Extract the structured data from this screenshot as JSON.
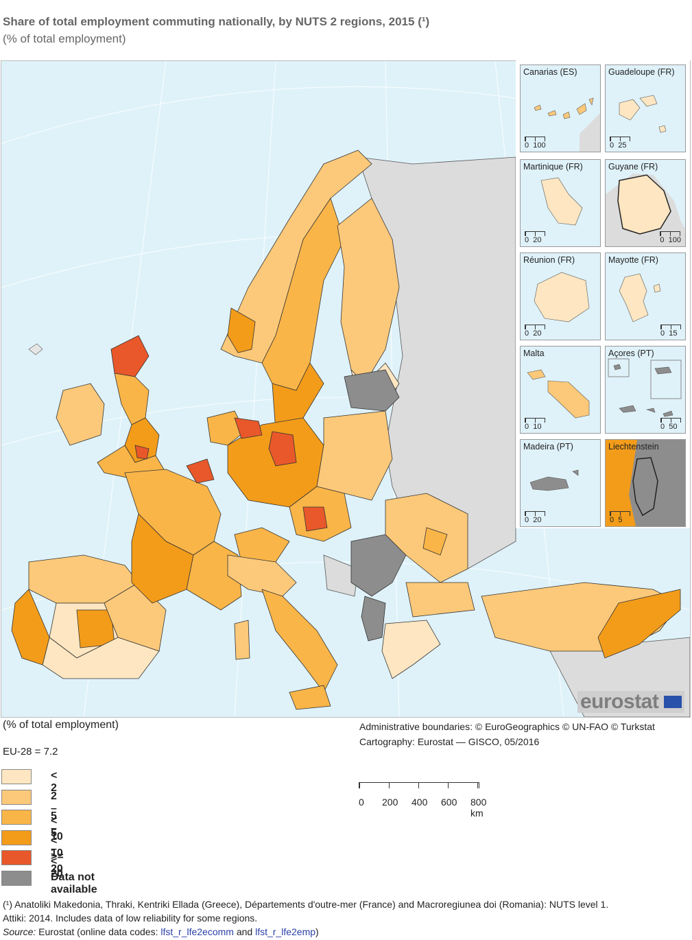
{
  "title": "Share of total employment commuting nationally, by NUTS 2 regions, 2015 (¹)",
  "subtitle": "(% of total employment)",
  "insets": [
    {
      "name": "Canarias (ES)",
      "scale_start": "0",
      "scale_end": "100"
    },
    {
      "name": "Guadeloupe (FR)",
      "scale_start": "0",
      "scale_end": "25"
    },
    {
      "name": "Martinique (FR)",
      "scale_start": "0",
      "scale_end": "20"
    },
    {
      "name": "Guyane (FR)",
      "scale_start": "0",
      "scale_end": "100"
    },
    {
      "name": "Réunion (FR)",
      "scale_start": "0",
      "scale_end": "20"
    },
    {
      "name": "Mayotte (FR)",
      "scale_start": "0",
      "scale_end": "15"
    },
    {
      "name": "Malta",
      "scale_start": "0",
      "scale_end": "10"
    },
    {
      "name": "Açores (PT)",
      "scale_start": "0",
      "scale_end": "50"
    },
    {
      "name": "Madeira (PT)",
      "scale_start": "0",
      "scale_end": "20"
    },
    {
      "name": "Liechtenstein",
      "scale_start": "0",
      "scale_end": "5"
    }
  ],
  "logo": "eurostat",
  "unit_label": "(% of total employment)",
  "eu_average": "EU-28 = 7.2",
  "credits": {
    "boundaries": "Administrative boundaries: © EuroGeographics © UN-FAO © Turkstat",
    "cartography": "Cartography: Eurostat — GISCO, 05/2016"
  },
  "legend": [
    {
      "label": "< 2",
      "color": "#fde6c1"
    },
    {
      "label": "2 – < 5",
      "color": "#fcc97a"
    },
    {
      "label": "5 – < 10",
      "color": "#f9b548"
    },
    {
      "label": "10 – < 20",
      "color": "#f39c1a"
    },
    {
      "label": ">= 20",
      "color": "#e8582a"
    },
    {
      "label": "Data not available",
      "color": "#8d8d8d"
    }
  ],
  "scale_bar": {
    "ticks": [
      "0",
      "200",
      "400",
      "600",
      "800 km"
    ]
  },
  "footnote": {
    "line1": "(¹) Anatoliki Makedonia, Thraki, Kentriki Ellada (Greece), Départements d'outre-mer (France) and Macroregiunea doi (Romania): NUTS level 1.",
    "line2": "Attiki: 2014. Includes data of low reliability for some regions.",
    "source_label": "Source:",
    "source_text": " Eurostat (online data codes: ",
    "code1": "lfst_r_lfe2ecomm",
    "and_text": " and ",
    "code2": "lfst_r_lfe2emp",
    "close": ")"
  },
  "colors": {
    "sea": "#dff2fa",
    "non_eu_land": "#dcdcdc",
    "border": "#333333"
  }
}
